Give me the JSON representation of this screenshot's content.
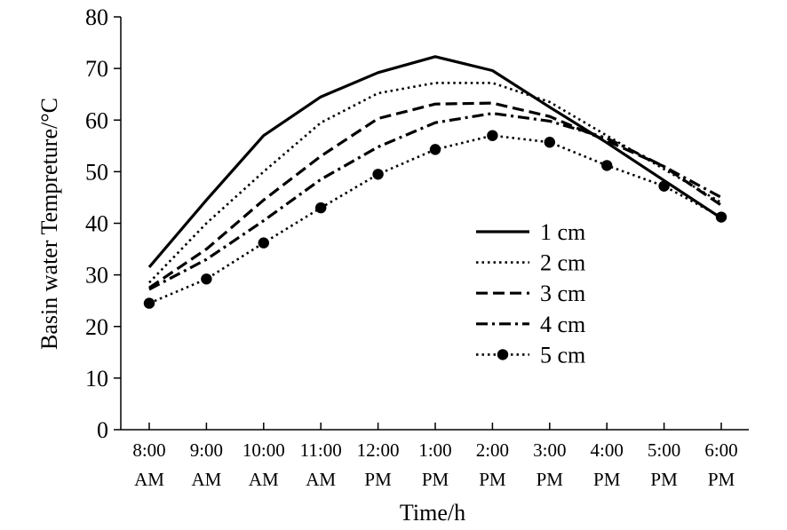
{
  "chart_data": {
    "type": "line",
    "title": "",
    "xlabel": "Time/h",
    "ylabel": "Basin water Tempreture/°C",
    "ylim": [
      0,
      80
    ],
    "yticks": [
      0,
      10,
      20,
      30,
      40,
      50,
      60,
      70,
      80
    ],
    "categories": [
      {
        "time": "8:00",
        "ampm": "AM"
      },
      {
        "time": "9:00",
        "ampm": "AM"
      },
      {
        "time": "10:00",
        "ampm": "AM"
      },
      {
        "time": "11:00",
        "ampm": "AM"
      },
      {
        "time": "12:00",
        "ampm": "PM"
      },
      {
        "time": "1:00",
        "ampm": "PM"
      },
      {
        "time": "2:00",
        "ampm": "PM"
      },
      {
        "time": "3:00",
        "ampm": "PM"
      },
      {
        "time": "4:00",
        "ampm": "PM"
      },
      {
        "time": "5:00",
        "ampm": "PM"
      },
      {
        "time": "6:00",
        "ampm": "PM"
      }
    ],
    "series": [
      {
        "name": "1 cm",
        "style": "solid",
        "values": [
          31.5,
          44.5,
          57,
          64.5,
          69.2,
          72.3,
          69.6,
          62.5,
          55.6,
          48.3,
          41
        ]
      },
      {
        "name": "2 cm",
        "style": "dotted",
        "values": [
          28.5,
          40,
          50,
          59.5,
          65.2,
          67.2,
          67.2,
          63.5,
          57,
          50.5,
          44
        ]
      },
      {
        "name": "3 cm",
        "style": "dashed",
        "values": [
          27.5,
          35,
          44.5,
          53,
          60.3,
          63.1,
          63.3,
          60.7,
          56,
          51,
          43.5
        ]
      },
      {
        "name": "4 cm",
        "style": "dashdot",
        "values": [
          27.2,
          33,
          40.5,
          48.5,
          54.8,
          59.5,
          61.3,
          59.8,
          56.5,
          51,
          45
        ]
      },
      {
        "name": "5 cm",
        "style": "dotted-marker",
        "values": [
          24.5,
          29.2,
          36.2,
          43,
          49.5,
          54.3,
          57,
          55.7,
          51.2,
          47.2,
          41.2
        ]
      }
    ],
    "legend_position": "right-middle",
    "grid": false
  }
}
